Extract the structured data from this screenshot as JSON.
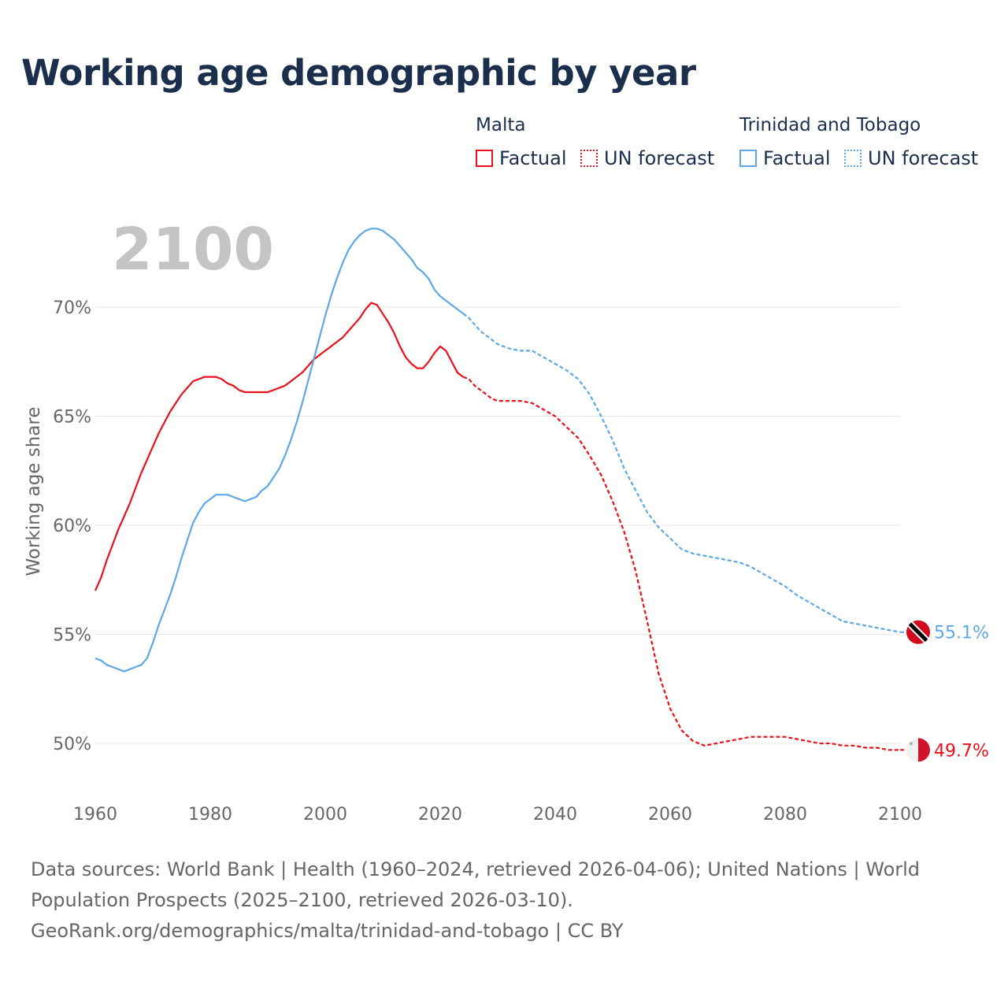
{
  "title": "Working age demographic by year",
  "legend": {
    "groups": [
      {
        "name": "Malta",
        "factual_label": "Factual",
        "forecast_label": "UN forecast",
        "color": "#e8101b"
      },
      {
        "name": "Trinidad and Tobago",
        "factual_label": "Factual",
        "forecast_label": "UN forecast",
        "color": "#5fa7e3"
      }
    ]
  },
  "colors": {
    "malta": "#e8101b",
    "trinidad": "#5fa7e3",
    "title": "#1b2f4d",
    "axis_text": "#666666",
    "grid": "#e6e6e6",
    "year_watermark": "#c4c4c4"
  },
  "chart_data": {
    "type": "line",
    "title": "Working age demographic by year",
    "xlabel": "",
    "ylabel": "Working age share",
    "xlim": [
      1960,
      2100
    ],
    "ylim": [
      47.5,
      74
    ],
    "x_ticks": [
      1960,
      1980,
      2000,
      2020,
      2040,
      2060,
      2080,
      2100
    ],
    "y_ticks": [
      50,
      55,
      60,
      65,
      70
    ],
    "y_tick_labels": [
      "50%",
      "55%",
      "60%",
      "65%",
      "70%"
    ],
    "current_year_label": "2100",
    "factual_range": [
      1960,
      2024
    ],
    "forecast_range": [
      2025,
      2100
    ],
    "series": [
      {
        "name": "Malta",
        "end_label": "49.7%",
        "points": [
          [
            1960,
            57.0
          ],
          [
            1961,
            57.6
          ],
          [
            1962,
            58.4
          ],
          [
            1963,
            59.1
          ],
          [
            1964,
            59.8
          ],
          [
            1965,
            60.4
          ],
          [
            1966,
            61.0
          ],
          [
            1967,
            61.7
          ],
          [
            1968,
            62.4
          ],
          [
            1969,
            63.0
          ],
          [
            1970,
            63.6
          ],
          [
            1971,
            64.2
          ],
          [
            1972,
            64.7
          ],
          [
            1973,
            65.2
          ],
          [
            1974,
            65.6
          ],
          [
            1975,
            66.0
          ],
          [
            1976,
            66.3
          ],
          [
            1977,
            66.6
          ],
          [
            1978,
            66.7
          ],
          [
            1979,
            66.8
          ],
          [
            1980,
            66.8
          ],
          [
            1981,
            66.8
          ],
          [
            1982,
            66.7
          ],
          [
            1983,
            66.5
          ],
          [
            1984,
            66.4
          ],
          [
            1985,
            66.2
          ],
          [
            1986,
            66.1
          ],
          [
            1987,
            66.1
          ],
          [
            1988,
            66.1
          ],
          [
            1989,
            66.1
          ],
          [
            1990,
            66.1
          ],
          [
            1991,
            66.2
          ],
          [
            1992,
            66.3
          ],
          [
            1993,
            66.4
          ],
          [
            1994,
            66.6
          ],
          [
            1995,
            66.8
          ],
          [
            1996,
            67.0
          ],
          [
            1997,
            67.3
          ],
          [
            1998,
            67.6
          ],
          [
            1999,
            67.8
          ],
          [
            2000,
            68.0
          ],
          [
            2001,
            68.2
          ],
          [
            2002,
            68.4
          ],
          [
            2003,
            68.6
          ],
          [
            2004,
            68.9
          ],
          [
            2005,
            69.2
          ],
          [
            2006,
            69.5
          ],
          [
            2007,
            69.9
          ],
          [
            2008,
            70.2
          ],
          [
            2009,
            70.1
          ],
          [
            2010,
            69.7
          ],
          [
            2011,
            69.3
          ],
          [
            2012,
            68.8
          ],
          [
            2013,
            68.2
          ],
          [
            2014,
            67.7
          ],
          [
            2015,
            67.4
          ],
          [
            2016,
            67.2
          ],
          [
            2017,
            67.2
          ],
          [
            2018,
            67.5
          ],
          [
            2019,
            67.9
          ],
          [
            2020,
            68.2
          ],
          [
            2021,
            68.0
          ],
          [
            2022,
            67.5
          ],
          [
            2023,
            67.0
          ],
          [
            2024,
            66.8
          ],
          [
            2025,
            66.7
          ],
          [
            2026,
            66.4
          ],
          [
            2027,
            66.2
          ],
          [
            2028,
            66.0
          ],
          [
            2029,
            65.8
          ],
          [
            2030,
            65.7
          ],
          [
            2032,
            65.7
          ],
          [
            2034,
            65.7
          ],
          [
            2036,
            65.6
          ],
          [
            2038,
            65.3
          ],
          [
            2040,
            65.0
          ],
          [
            2042,
            64.5
          ],
          [
            2044,
            64.0
          ],
          [
            2046,
            63.2
          ],
          [
            2048,
            62.3
          ],
          [
            2050,
            61.1
          ],
          [
            2052,
            59.7
          ],
          [
            2054,
            57.9
          ],
          [
            2056,
            55.6
          ],
          [
            2058,
            53.2
          ],
          [
            2060,
            51.6
          ],
          [
            2062,
            50.6
          ],
          [
            2064,
            50.1
          ],
          [
            2066,
            49.9
          ],
          [
            2068,
            50.0
          ],
          [
            2070,
            50.1
          ],
          [
            2072,
            50.2
          ],
          [
            2074,
            50.3
          ],
          [
            2076,
            50.3
          ],
          [
            2078,
            50.3
          ],
          [
            2080,
            50.3
          ],
          [
            2082,
            50.2
          ],
          [
            2084,
            50.1
          ],
          [
            2086,
            50.0
          ],
          [
            2088,
            50.0
          ],
          [
            2090,
            49.9
          ],
          [
            2092,
            49.9
          ],
          [
            2094,
            49.8
          ],
          [
            2096,
            49.8
          ],
          [
            2098,
            49.7
          ],
          [
            2100,
            49.7
          ]
        ]
      },
      {
        "name": "Trinidad and Tobago",
        "end_label": "55.1%",
        "points": [
          [
            1960,
            53.9
          ],
          [
            1961,
            53.8
          ],
          [
            1962,
            53.6
          ],
          [
            1963,
            53.5
          ],
          [
            1964,
            53.4
          ],
          [
            1965,
            53.3
          ],
          [
            1966,
            53.4
          ],
          [
            1967,
            53.5
          ],
          [
            1968,
            53.6
          ],
          [
            1969,
            53.9
          ],
          [
            1970,
            54.6
          ],
          [
            1971,
            55.4
          ],
          [
            1972,
            56.1
          ],
          [
            1973,
            56.8
          ],
          [
            1974,
            57.6
          ],
          [
            1975,
            58.5
          ],
          [
            1976,
            59.3
          ],
          [
            1977,
            60.1
          ],
          [
            1978,
            60.6
          ],
          [
            1979,
            61.0
          ],
          [
            1980,
            61.2
          ],
          [
            1981,
            61.4
          ],
          [
            1982,
            61.4
          ],
          [
            1983,
            61.4
          ],
          [
            1984,
            61.3
          ],
          [
            1985,
            61.2
          ],
          [
            1986,
            61.1
          ],
          [
            1987,
            61.2
          ],
          [
            1988,
            61.3
          ],
          [
            1989,
            61.6
          ],
          [
            1990,
            61.8
          ],
          [
            1991,
            62.2
          ],
          [
            1992,
            62.6
          ],
          [
            1993,
            63.2
          ],
          [
            1994,
            63.9
          ],
          [
            1995,
            64.7
          ],
          [
            1996,
            65.6
          ],
          [
            1997,
            66.6
          ],
          [
            1998,
            67.6
          ],
          [
            1999,
            68.6
          ],
          [
            2000,
            69.6
          ],
          [
            2001,
            70.5
          ],
          [
            2002,
            71.3
          ],
          [
            2003,
            72.0
          ],
          [
            2004,
            72.6
          ],
          [
            2005,
            73.0
          ],
          [
            2006,
            73.3
          ],
          [
            2007,
            73.5
          ],
          [
            2008,
            73.6
          ],
          [
            2009,
            73.6
          ],
          [
            2010,
            73.5
          ],
          [
            2011,
            73.3
          ],
          [
            2012,
            73.1
          ],
          [
            2013,
            72.8
          ],
          [
            2014,
            72.5
          ],
          [
            2015,
            72.2
          ],
          [
            2016,
            71.8
          ],
          [
            2017,
            71.6
          ],
          [
            2018,
            71.3
          ],
          [
            2019,
            70.8
          ],
          [
            2020,
            70.5
          ],
          [
            2021,
            70.3
          ],
          [
            2022,
            70.1
          ],
          [
            2023,
            69.9
          ],
          [
            2024,
            69.7
          ],
          [
            2025,
            69.5
          ],
          [
            2026,
            69.2
          ],
          [
            2027,
            68.9
          ],
          [
            2028,
            68.7
          ],
          [
            2029,
            68.5
          ],
          [
            2030,
            68.3
          ],
          [
            2032,
            68.1
          ],
          [
            2034,
            68.0
          ],
          [
            2036,
            68.0
          ],
          [
            2038,
            67.7
          ],
          [
            2040,
            67.4
          ],
          [
            2042,
            67.1
          ],
          [
            2044,
            66.7
          ],
          [
            2046,
            66.0
          ],
          [
            2048,
            65.0
          ],
          [
            2050,
            63.9
          ],
          [
            2052,
            62.6
          ],
          [
            2054,
            61.6
          ],
          [
            2056,
            60.6
          ],
          [
            2058,
            59.9
          ],
          [
            2060,
            59.4
          ],
          [
            2062,
            58.9
          ],
          [
            2064,
            58.7
          ],
          [
            2066,
            58.6
          ],
          [
            2068,
            58.5
          ],
          [
            2070,
            58.4
          ],
          [
            2072,
            58.3
          ],
          [
            2074,
            58.1
          ],
          [
            2076,
            57.8
          ],
          [
            2078,
            57.5
          ],
          [
            2080,
            57.2
          ],
          [
            2082,
            56.8
          ],
          [
            2084,
            56.5
          ],
          [
            2086,
            56.2
          ],
          [
            2088,
            55.9
          ],
          [
            2090,
            55.6
          ],
          [
            2092,
            55.5
          ],
          [
            2094,
            55.4
          ],
          [
            2096,
            55.3
          ],
          [
            2098,
            55.2
          ],
          [
            2100,
            55.1
          ]
        ]
      }
    ]
  },
  "source": {
    "line1": "Data sources: World Bank | Health (1960–2024, retrieved 2026-04-06); United Nations | World",
    "line2": "Population Prospects (2025–2100, retrieved 2026-03-10).",
    "line3": "GeoRank.org/demographics/malta/trinidad-and-tobago | CC BY"
  }
}
